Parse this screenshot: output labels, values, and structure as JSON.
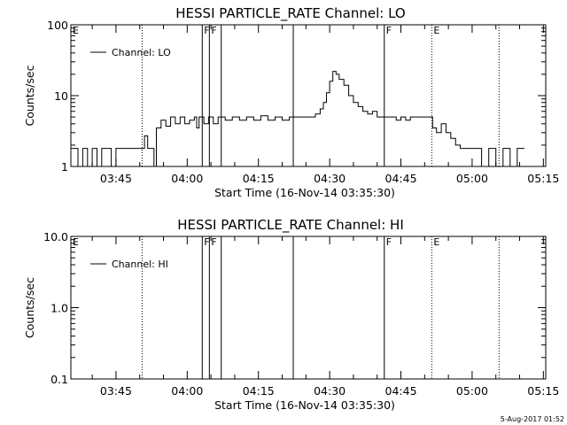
{
  "chart_data": [
    {
      "type": "line",
      "title": "HESSI PARTICLE_RATE Channel: LO",
      "xlabel": "Start Time (16-Nov-14 03:35:30)",
      "ylabel": "Counts/sec",
      "yscale": "log",
      "ylim": [
        1,
        100
      ],
      "yticks": [
        {
          "v": 1,
          "label": "1"
        },
        {
          "v": 10,
          "label": "10"
        },
        {
          "v": 100,
          "label": "100"
        }
      ],
      "xlim": [
        "03:35:30",
        "05:15:30"
      ],
      "xticks": [
        "03:45",
        "04:00",
        "04:15",
        "04:30",
        "04:45",
        "05:00",
        "05:15"
      ],
      "legend": "top-left",
      "series": [
        {
          "name": "Channel: LO",
          "x": [
            "03:35:30",
            "03:37:00",
            "03:38:00",
            "03:39:00",
            "03:40:00",
            "03:41:00",
            "03:42:00",
            "03:43:00",
            "03:44:00",
            "03:45:00",
            "03:46:00",
            "03:47:00",
            "03:48:00",
            "03:49:00",
            "03:50:00",
            "03:51:00",
            "03:51:40",
            "03:52:30",
            "03:53:00",
            "03:53:30",
            "03:54:30",
            "03:55:30",
            "03:56:30",
            "03:57:30",
            "03:58:30",
            "03:59:30",
            "04:00:30",
            "04:01:30",
            "04:02:00",
            "04:02:30",
            "04:03:30",
            "04:04:30",
            "04:05:30",
            "04:06:30",
            "04:08:00",
            "04:09:30",
            "04:11:00",
            "04:12:30",
            "04:14:00",
            "04:15:30",
            "04:17:00",
            "04:18:30",
            "04:20:00",
            "04:21:30",
            "04:23:00",
            "04:24:30",
            "04:26:00",
            "04:27:00",
            "04:28:00",
            "04:28:40",
            "04:29:20",
            "04:30:00",
            "04:30:40",
            "04:31:20",
            "04:32:00",
            "04:33:00",
            "04:34:00",
            "04:35:00",
            "04:36:00",
            "04:37:00",
            "04:38:00",
            "04:39:00",
            "04:40:00",
            "04:41:00",
            "04:42:00",
            "04:43:00",
            "04:44:00",
            "04:45:00",
            "04:46:00",
            "04:47:00",
            "04:48:00",
            "04:49:00",
            "04:50:00",
            "04:51:00",
            "04:51:40",
            "04:52:30",
            "04:53:30",
            "04:54:30",
            "04:55:30",
            "04:56:30",
            "04:57:30",
            "04:58:30",
            "04:59:30",
            "05:00:30",
            "05:02:00",
            "05:03:30",
            "05:05:00",
            "05:06:30",
            "05:08:00",
            "05:09:30",
            "05:11:00"
          ],
          "y": [
            1.8,
            1,
            1.8,
            1,
            1.8,
            1,
            1.8,
            1.8,
            1,
            1.8,
            1.8,
            1.8,
            1.8,
            1.8,
            1.8,
            2.7,
            1.8,
            1.8,
            1,
            3.5,
            4.5,
            3.7,
            5,
            4,
            5,
            4,
            4.5,
            5,
            3.5,
            5,
            4,
            5,
            4,
            5,
            4.5,
            5,
            4.5,
            5,
            4.5,
            5.2,
            4.5,
            5,
            4.5,
            5,
            5,
            5,
            5,
            5.5,
            6.5,
            8,
            11,
            16,
            22,
            20,
            17,
            14,
            10,
            8,
            7,
            6,
            5.5,
            6,
            5,
            5,
            5,
            5,
            4.5,
            5,
            4.5,
            5,
            5,
            5,
            5,
            5,
            3.5,
            3,
            4,
            3,
            2.5,
            2,
            1.8,
            1.8,
            1.8,
            1.8,
            1,
            1.8,
            1,
            1.8,
            1,
            1.8,
            1.8
          ]
        }
      ],
      "flag_labels": [
        {
          "t": "03:35:30",
          "label": "E",
          "style": "none"
        },
        {
          "t": "03:50:30",
          "label": "",
          "style": "dotted"
        },
        {
          "t": "04:03:10",
          "label": "F",
          "style": "solid"
        },
        {
          "t": "04:04:40",
          "label": "F",
          "style": "solid"
        },
        {
          "t": "04:07:10",
          "label": "",
          "style": "solid"
        },
        {
          "t": "04:22:20",
          "label": "",
          "style": "solid"
        },
        {
          "t": "04:41:30",
          "label": "F",
          "style": "solid"
        },
        {
          "t": "04:51:30",
          "label": "E",
          "style": "dotted"
        },
        {
          "t": "05:05:40",
          "label": "",
          "style": "dotted"
        }
      ]
    },
    {
      "type": "line",
      "title": "HESSI PARTICLE_RATE Channel: HI",
      "xlabel": "Start Time (16-Nov-14 03:35:30)",
      "ylabel": "Counts/sec",
      "yscale": "log",
      "ylim": [
        0.1,
        10
      ],
      "yticks": [
        {
          "v": 0.1,
          "label": "0.1"
        },
        {
          "v": 1,
          "label": "1.0"
        },
        {
          "v": 10,
          "label": "10.0"
        }
      ],
      "xlim": [
        "03:35:30",
        "05:15:30"
      ],
      "xticks": [
        "03:45",
        "04:00",
        "04:15",
        "04:30",
        "04:45",
        "05:00",
        "05:15"
      ],
      "legend": "top-left",
      "series": [
        {
          "name": "Channel: HI",
          "x": [],
          "y": []
        }
      ],
      "flag_labels": [
        {
          "t": "03:35:30",
          "label": "E",
          "style": "none"
        },
        {
          "t": "03:50:30",
          "label": "",
          "style": "dotted"
        },
        {
          "t": "04:03:10",
          "label": "F",
          "style": "solid"
        },
        {
          "t": "04:04:40",
          "label": "F",
          "style": "solid"
        },
        {
          "t": "04:07:10",
          "label": "",
          "style": "solid"
        },
        {
          "t": "04:22:20",
          "label": "",
          "style": "solid"
        },
        {
          "t": "04:41:30",
          "label": "F",
          "style": "solid"
        },
        {
          "t": "04:51:30",
          "label": "E",
          "style": "dotted"
        },
        {
          "t": "05:05:40",
          "label": "",
          "style": "dotted"
        }
      ]
    }
  ],
  "footer": {
    "timestamp": "5-Aug-2017 01:52"
  }
}
